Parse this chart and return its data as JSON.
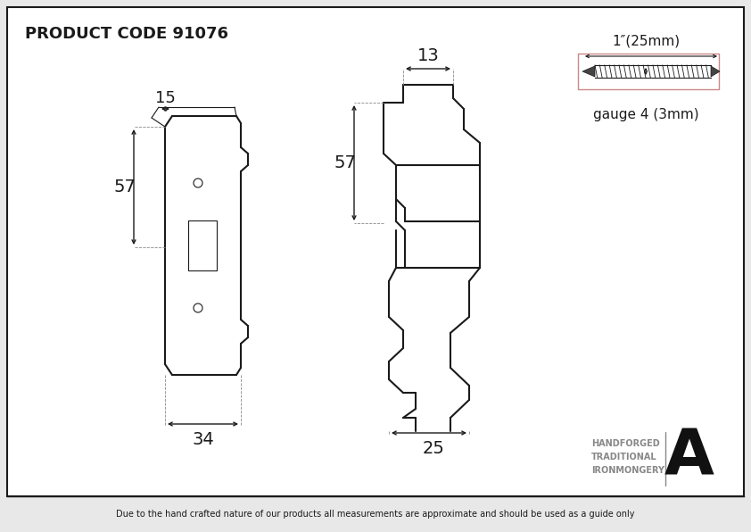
{
  "title": "PRODUCT CODE 91076",
  "footer": "Due to the hand crafted nature of our products all measurements are approximate and should be used as a guide only",
  "screw_label_top": "1″(25mm)",
  "screw_label_bottom": "gauge 4 (3mm)",
  "brand_line1": "HANDFORGED",
  "brand_line2": "TRADITIONAL",
  "brand_line3": "IRONMONGERY",
  "dim_15": "15",
  "dim_57_left": "57",
  "dim_34": "34",
  "dim_13": "13",
  "dim_57_right": "57",
  "dim_25": "25",
  "bg_color": "#e8e8e8",
  "draw_color": "#1a1a1a",
  "white": "#ffffff",
  "gray_ext": "#888888",
  "screw_rect_color": "#cc8888",
  "brand_text_color": "#888888",
  "logo_color": "#111111"
}
